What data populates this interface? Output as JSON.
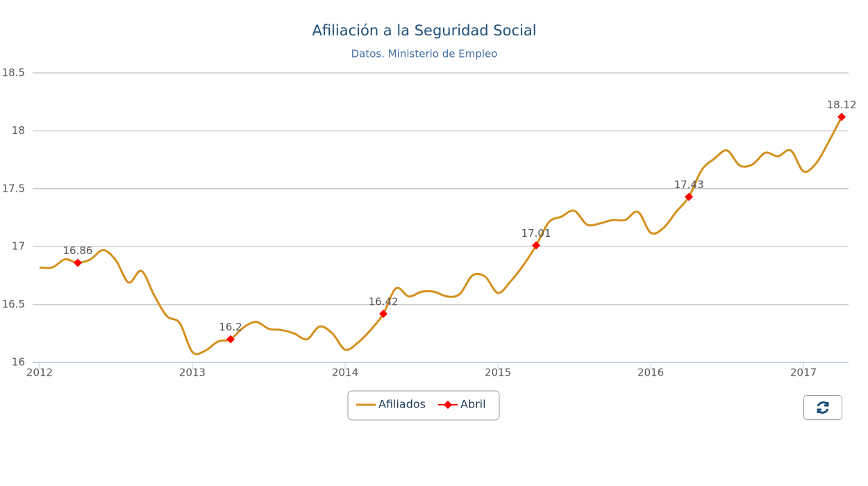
{
  "chart_data": {
    "type": "line",
    "title": "Afiliación a la Seguridad Social",
    "subtitle": "Datos. Ministerio de Empleo",
    "xlim": [
      2012,
      2017.295
    ],
    "xticks": [
      2012,
      2013,
      2014,
      2015,
      2016,
      2017
    ],
    "ylim": [
      16,
      18.5
    ],
    "yticks": [
      16,
      16.5,
      17,
      17.5,
      18,
      18.5
    ],
    "grid": true,
    "legend": "bottom",
    "series": [
      {
        "name": "Afiliados",
        "color": "#d4901c",
        "marker": false,
        "x": [
          2012,
          2012.083,
          2012.167,
          2012.25,
          2012.333,
          2012.417,
          2012.5,
          2012.583,
          2012.667,
          2012.75,
          2012.833,
          2012.917,
          2013,
          2013.083,
          2013.167,
          2013.25,
          2013.333,
          2013.417,
          2013.5,
          2013.583,
          2013.667,
          2013.75,
          2013.833,
          2013.917,
          2014,
          2014.083,
          2014.167,
          2014.25,
          2014.333,
          2014.417,
          2014.5,
          2014.583,
          2014.667,
          2014.75,
          2014.833,
          2014.917,
          2015,
          2015.083,
          2015.167,
          2015.25,
          2015.333,
          2015.417,
          2015.5,
          2015.583,
          2015.667,
          2015.75,
          2015.833,
          2015.917,
          2016,
          2016.083,
          2016.167,
          2016.25,
          2016.333,
          2016.417,
          2016.5,
          2016.583,
          2016.667,
          2016.75,
          2016.833,
          2016.917,
          2017,
          2017.083,
          2017.167,
          2017.25
        ],
        "values": [
          16.82,
          16.82,
          16.89,
          16.86,
          16.89,
          16.97,
          16.88,
          16.69,
          16.79,
          16.58,
          16.4,
          16.34,
          16.09,
          16.1,
          16.18,
          16.2,
          16.3,
          16.35,
          16.29,
          16.28,
          16.25,
          16.2,
          16.31,
          16.25,
          16.11,
          16.17,
          16.28,
          16.42,
          16.64,
          16.57,
          16.61,
          16.61,
          16.57,
          16.59,
          16.75,
          16.74,
          16.6,
          16.7,
          16.84,
          17.01,
          17.21,
          17.26,
          17.31,
          17.19,
          17.2,
          17.23,
          17.23,
          17.3,
          17.12,
          17.16,
          17.3,
          17.43,
          17.66,
          17.76,
          17.83,
          17.7,
          17.71,
          17.81,
          17.78,
          17.83,
          17.65,
          17.72,
          17.91,
          18.12
        ]
      },
      {
        "name": "Abril",
        "color": "#ff0000",
        "marker": true,
        "x": [
          2012.25,
          2013.25,
          2014.25,
          2015.25,
          2016.25,
          2017.25
        ],
        "values": [
          16.86,
          16.2,
          16.42,
          17.01,
          17.43,
          18.12
        ]
      }
    ]
  }
}
